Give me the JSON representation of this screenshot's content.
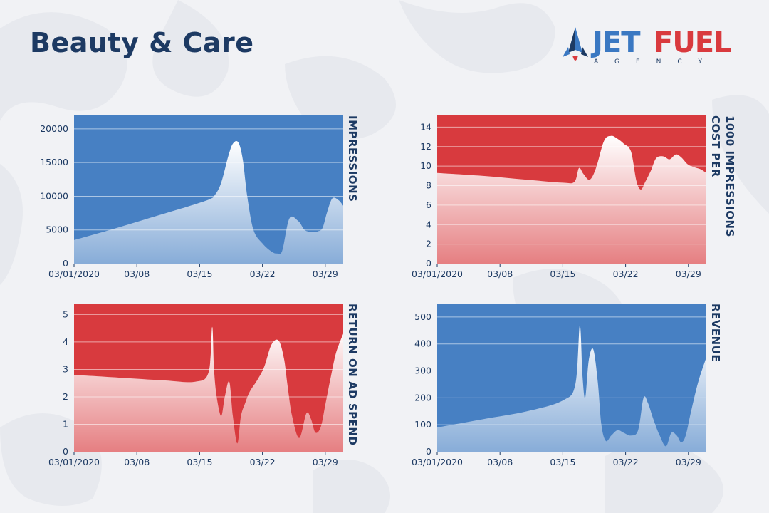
{
  "title": "Beauty & Care",
  "logo": {
    "part1": "JET",
    "part2": "FUEL",
    "sub": "AGENCY",
    "blue": "#3a78c2",
    "red": "#d93a3e",
    "icon": "rocket-icon"
  },
  "colors": {
    "blue": "#4780c3",
    "red": "#d83a3e",
    "text": "#1d3a63",
    "background": "#f1f2f5"
  },
  "chart_data": [
    {
      "type": "area",
      "name": "impressions",
      "title": "IMPRESSIONS",
      "color": "blue",
      "xlabels": [
        "03/01/2020",
        "03/08",
        "03/15",
        "03/22",
        "03/29"
      ],
      "xlabel_days": [
        0,
        7,
        14,
        21,
        28
      ],
      "xlim": [
        0,
        30
      ],
      "ylim": [
        0,
        22000
      ],
      "yticks": [
        0,
        5000,
        10000,
        15000,
        20000
      ],
      "ytick_labels": [
        "0",
        "5000",
        "10000",
        "15000",
        "20000"
      ],
      "x": [
        0,
        4,
        8,
        12,
        15,
        15.7,
        16.4,
        17.2,
        17.7,
        18.3,
        18.8,
        19.3,
        20,
        21,
        22,
        22.6,
        23.2,
        24,
        25,
        25.7,
        26.5,
        27.2,
        27.7,
        28.2,
        28.8,
        29.5,
        30
      ],
      "y": [
        3500,
        5000,
        6600,
        8200,
        9500,
        10200,
        12000,
        16000,
        17800,
        18000,
        15500,
        10000,
        5000,
        3000,
        1800,
        1500,
        1900,
        6700,
        6300,
        5000,
        4700,
        4800,
        5300,
        7600,
        9700,
        9400,
        8600
      ]
    },
    {
      "type": "area",
      "name": "cost-per-1000-impressions",
      "title": "COST PER 1000 IMPRESSIONS",
      "color": "red",
      "xlabels": [
        "03/01/2020",
        "03/08",
        "03/15",
        "03/22",
        "03/29"
      ],
      "xlabel_days": [
        0,
        7,
        14,
        21,
        28
      ],
      "xlim": [
        0,
        30
      ],
      "ylim": [
        0,
        15.2
      ],
      "yticks": [
        0,
        2,
        4,
        6,
        8,
        10,
        12,
        14
      ],
      "ytick_labels": [
        "0",
        "2",
        "4",
        "6",
        "8",
        "10",
        "12",
        "14"
      ],
      "x": [
        0,
        5,
        10,
        14,
        15.3,
        15.8,
        16.3,
        17,
        17.7,
        18.6,
        19.4,
        20.1,
        20.8,
        21.6,
        22.2,
        22.7,
        23.2,
        23.8,
        24.4,
        25.2,
        25.9,
        26.6,
        27.2,
        27.9,
        28.6,
        29.3,
        30
      ],
      "y": [
        9.3,
        9,
        8.6,
        8.3,
        8.4,
        9.8,
        9.2,
        8.6,
        9.8,
        12.6,
        13.1,
        12.8,
        12.3,
        11.5,
        8.5,
        7.6,
        8.4,
        9.5,
        10.8,
        11.0,
        10.7,
        11.2,
        10.9,
        10.2,
        9.9,
        9.7,
        9.3
      ]
    },
    {
      "type": "area",
      "name": "return-on-ad-spend",
      "title": "RETURN ON AD SPEND",
      "color": "red",
      "xlabels": [
        "03/01/2020",
        "03/08",
        "03/15",
        "03/22",
        "03/29"
      ],
      "xlabel_days": [
        0,
        7,
        14,
        21,
        28
      ],
      "xlim": [
        0,
        30
      ],
      "ylim": [
        0,
        5.4
      ],
      "yticks": [
        0,
        1,
        2,
        3,
        4,
        5
      ],
      "ytick_labels": [
        "0",
        "1",
        "2",
        "3",
        "4",
        "5"
      ],
      "x": [
        0,
        5,
        10,
        13.5,
        15,
        15.4,
        15.6,
        15.9,
        16.4,
        16.8,
        17.3,
        17.7,
        18.2,
        18.6,
        19.1,
        19.6,
        20.4,
        21.2,
        22.0,
        22.8,
        23.4,
        23.8,
        24.3,
        25.1,
        25.9,
        26.4,
        26.9,
        27.5,
        28.0,
        28.6,
        29.2,
        30
      ],
      "y": [
        2.8,
        2.7,
        2.6,
        2.55,
        2.9,
        4.55,
        3.0,
        2.0,
        1.3,
        2.0,
        2.55,
        1.3,
        0.3,
        1.3,
        1.8,
        2.2,
        2.6,
        3.1,
        3.9,
        4.05,
        3.4,
        2.4,
        1.3,
        0.5,
        1.4,
        1.2,
        0.7,
        0.9,
        1.7,
        2.7,
        3.6,
        4.3
      ]
    },
    {
      "type": "area",
      "name": "revenue",
      "title": "REVENUE",
      "color": "blue",
      "xlabels": [
        "03/01/2020",
        "03/08",
        "03/15",
        "03/22",
        "03/29"
      ],
      "xlabel_days": [
        0,
        7,
        14,
        21,
        28
      ],
      "xlim": [
        0,
        30
      ],
      "ylim": [
        0,
        550
      ],
      "yticks": [
        0,
        100,
        200,
        300,
        400,
        500
      ],
      "ytick_labels": [
        "0",
        "100",
        "200",
        "300",
        "400",
        "500"
      ],
      "x": [
        0,
        5,
        10,
        14,
        15.4,
        15.9,
        16.2,
        16.5,
        16.9,
        17.4,
        17.9,
        18.3,
        18.8,
        19.4,
        20.1,
        20.8,
        21.6,
        22.4,
        23.0,
        23.5,
        24.1,
        24.8,
        25.5,
        26.1,
        26.7,
        27.2,
        27.7,
        28.3,
        29.1,
        30
      ],
      "y": [
        90,
        120,
        150,
        190,
        250,
        470,
        280,
        200,
        340,
        380,
        260,
        100,
        40,
        60,
        80,
        70,
        60,
        80,
        200,
        180,
        120,
        60,
        20,
        70,
        60,
        35,
        60,
        150,
        260,
        350
      ]
    }
  ]
}
